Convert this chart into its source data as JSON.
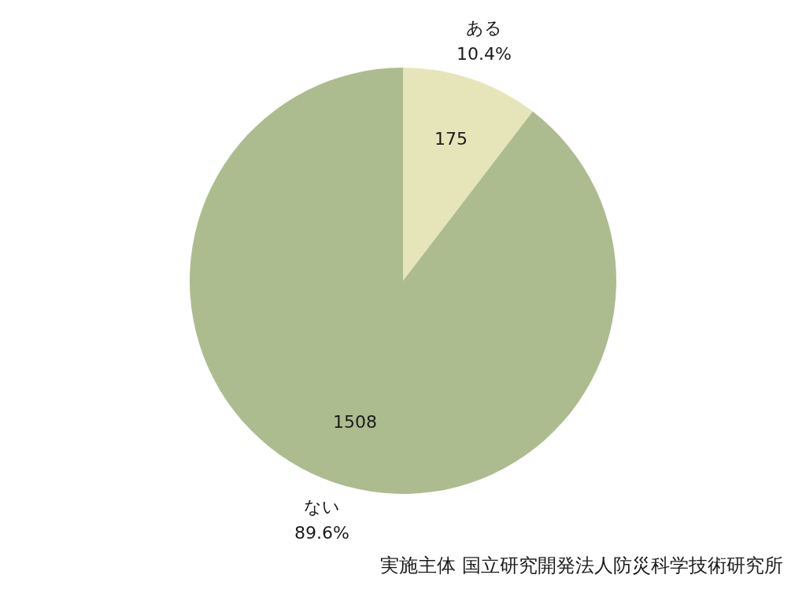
{
  "chart_data": {
    "type": "pie",
    "categories": [
      "ある",
      "ない"
    ],
    "values": [
      175,
      1508
    ],
    "colors": [
      "#e6e5ba",
      "#adbc8f"
    ],
    "data_labels": true,
    "annotations": [
      {
        "text": "10.4%",
        "x": "ある"
      },
      {
        "text": "89.6%",
        "x": "ない"
      },
      "実施主体 国立研究開発法人防災科学技術研究所"
    ]
  }
}
